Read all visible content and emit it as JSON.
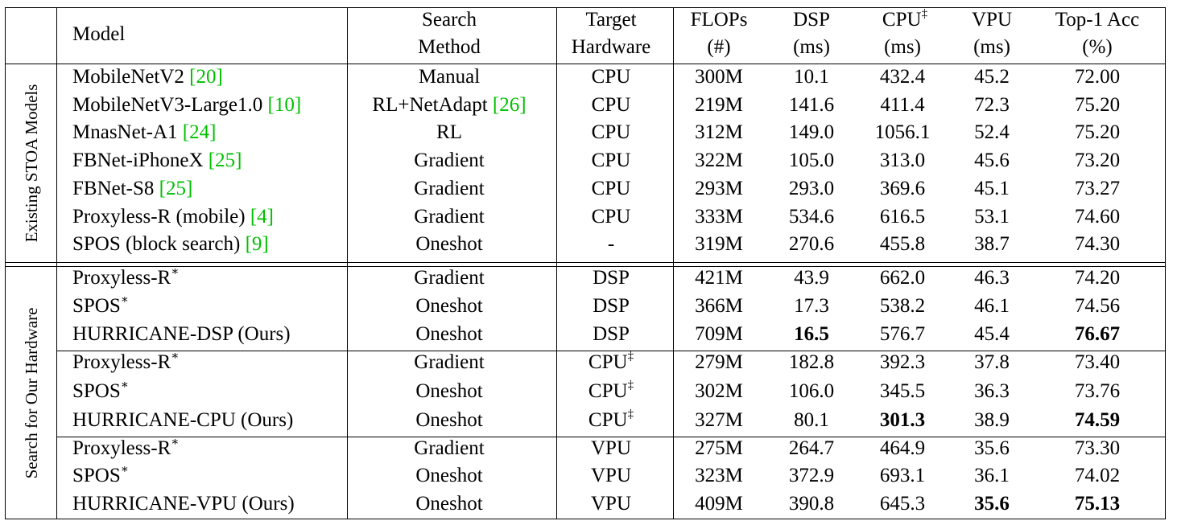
{
  "header": {
    "model": "Model",
    "search": [
      "Search",
      "Method"
    ],
    "target": [
      "Target",
      "Hardware"
    ],
    "flops": [
      "FLOPs",
      "(#)"
    ],
    "dsp": [
      "DSP",
      "(ms)"
    ],
    "cpu": [
      "CPU",
      "(ms)"
    ],
    "cpu_mark": "‡",
    "vpu": [
      "VPU",
      "(ms)"
    ],
    "acc": [
      "Top-1 Acc",
      "(%)"
    ]
  },
  "groups": [
    "Existing STOA Models",
    "Search for Our Hardware"
  ],
  "rows": [
    {
      "name": "MobileNetV2 ",
      "cite": "[20]",
      "star": "",
      "search": "Manual",
      "search_cite": "",
      "target": "CPU",
      "tmark": "",
      "flops": "300M",
      "dsp": "10.1",
      "cpu": "432.4",
      "vpu": "45.2",
      "acc": "72.00"
    },
    {
      "name": "MobileNetV3-Large1.0 ",
      "cite": "[10]",
      "star": "",
      "search": "RL+NetAdapt ",
      "search_cite": "[26]",
      "target": "CPU",
      "tmark": "",
      "flops": "219M",
      "dsp": "141.6",
      "cpu": "411.4",
      "vpu": "72.3",
      "acc": "75.20"
    },
    {
      "name": "MnasNet-A1 ",
      "cite": "[24]",
      "star": "",
      "search": "RL",
      "search_cite": "",
      "target": "CPU",
      "tmark": "",
      "flops": "312M",
      "dsp": "149.0",
      "cpu": "1056.1",
      "vpu": "52.4",
      "acc": "75.20"
    },
    {
      "name": "FBNet-iPhoneX ",
      "cite": "[25]",
      "star": "",
      "search": "Gradient",
      "search_cite": "",
      "target": "CPU",
      "tmark": "",
      "flops": "322M",
      "dsp": "105.0",
      "cpu": "313.0",
      "vpu": "45.6",
      "acc": "73.20"
    },
    {
      "name": "FBNet-S8 ",
      "cite": "[25]",
      "star": "",
      "search": "Gradient",
      "search_cite": "",
      "target": "CPU",
      "tmark": "",
      "flops": "293M",
      "dsp": "293.0",
      "cpu": "369.6",
      "vpu": "45.1",
      "acc": "73.27"
    },
    {
      "name": "Proxyless-R (mobile) ",
      "cite": "[4]",
      "star": "",
      "search": "Gradient",
      "search_cite": "",
      "target": "CPU",
      "tmark": "",
      "flops": "333M",
      "dsp": "534.6",
      "cpu": "616.5",
      "vpu": "53.1",
      "acc": "74.60"
    },
    {
      "name": "SPOS (block search) ",
      "cite": "[9]",
      "star": "",
      "search": "Oneshot",
      "search_cite": "",
      "target": "-",
      "tmark": "",
      "flops": "319M",
      "dsp": "270.6",
      "cpu": "455.8",
      "vpu": "38.7",
      "acc": "74.30"
    },
    {
      "name": "Proxyless-R",
      "cite": "",
      "star": "∗",
      "search": "Gradient",
      "search_cite": "",
      "target": "DSP",
      "tmark": "",
      "flops": "421M",
      "dsp": "43.9",
      "cpu": "662.0",
      "vpu": "46.3",
      "acc": "74.20"
    },
    {
      "name": "SPOS",
      "cite": "",
      "star": "∗",
      "search": "Oneshot",
      "search_cite": "",
      "target": "DSP",
      "tmark": "",
      "flops": "366M",
      "dsp": "17.3",
      "cpu": "538.2",
      "vpu": "46.1",
      "acc": "74.56"
    },
    {
      "name": "HURRICANE-DSP (Ours)",
      "cite": "",
      "star": "",
      "search": "Oneshot",
      "search_cite": "",
      "target": "DSP",
      "tmark": "",
      "flops": "709M",
      "dsp": "16.5",
      "cpu": "576.7",
      "vpu": "45.4",
      "acc": "76.67",
      "bold": [
        "dsp",
        "acc"
      ]
    },
    {
      "name": "Proxyless-R",
      "cite": "",
      "star": "∗",
      "search": "Gradient",
      "search_cite": "",
      "target": "CPU",
      "tmark": "‡",
      "flops": "279M",
      "dsp": "182.8",
      "cpu": "392.3",
      "vpu": "37.8",
      "acc": "73.40"
    },
    {
      "name": "SPOS",
      "cite": "",
      "star": "∗",
      "search": "Oneshot",
      "search_cite": "",
      "target": "CPU",
      "tmark": "‡",
      "flops": "302M",
      "dsp": "106.0",
      "cpu": "345.5",
      "vpu": "36.3",
      "acc": "73.76"
    },
    {
      "name": "HURRICANE-CPU (Ours)",
      "cite": "",
      "star": "",
      "search": "Oneshot",
      "search_cite": "",
      "target": "CPU",
      "tmark": "‡",
      "flops": "327M",
      "dsp": "80.1",
      "cpu": "301.3",
      "vpu": "38.9",
      "acc": "74.59",
      "bold": [
        "cpu",
        "acc"
      ]
    },
    {
      "name": "Proxyless-R",
      "cite": "",
      "star": "∗",
      "search": "Gradient",
      "search_cite": "",
      "target": "VPU",
      "tmark": "",
      "flops": "275M",
      "dsp": "264.7",
      "cpu": "464.9",
      "vpu": "35.6",
      "acc": "73.30"
    },
    {
      "name": "SPOS",
      "cite": "",
      "star": "∗",
      "search": "Oneshot",
      "search_cite": "",
      "target": "VPU",
      "tmark": "",
      "flops": "323M",
      "dsp": "372.9",
      "cpu": "693.1",
      "vpu": "36.1",
      "acc": "74.02"
    },
    {
      "name": "HURRICANE-VPU (Ours)",
      "cite": "",
      "star": "",
      "search": "Oneshot",
      "search_cite": "",
      "target": "VPU",
      "tmark": "",
      "flops": "409M",
      "dsp": "390.8",
      "cpu": "645.3",
      "vpu": "35.6",
      "acc": "75.13",
      "bold": [
        "vpu",
        "acc"
      ]
    }
  ]
}
